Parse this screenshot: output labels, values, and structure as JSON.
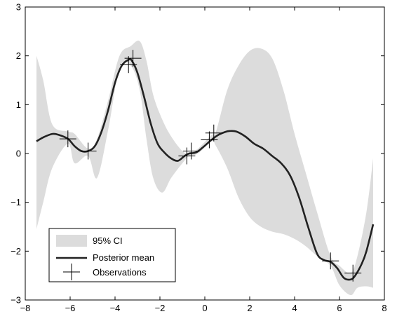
{
  "chart_data": {
    "type": "line",
    "title": "",
    "xlabel": "",
    "ylabel": "",
    "xlim": [
      -8,
      8
    ],
    "ylim": [
      -3,
      3
    ],
    "xticks": [
      -8,
      -6,
      -4,
      -2,
      0,
      2,
      4,
      6,
      8
    ],
    "yticks": [
      -3,
      -2,
      -1,
      0,
      1,
      2,
      3
    ],
    "xtick_labels": [
      "−8",
      "−6",
      "−4",
      "−2",
      "0",
      "2",
      "4",
      "6",
      "8"
    ],
    "ytick_labels": [
      "−3",
      "−2",
      "−1",
      "0",
      "1",
      "2",
      "3"
    ],
    "grid": false,
    "legend_position": "bottom-left",
    "colors": {
      "band": "#dcdcdc",
      "mean": "#222222",
      "marker": "#000000"
    },
    "series": [
      {
        "name": "95% CI",
        "kind": "band",
        "x": [
          -7.5,
          -7.2,
          -6.8,
          -6.1,
          -5.8,
          -5.2,
          -4.8,
          -4.3,
          -3.8,
          -3.3,
          -2.9,
          -2.6,
          -2.3,
          -1.9,
          -1.5,
          -1.0,
          -0.7,
          -0.3,
          0.3,
          0.5,
          1.0,
          1.5,
          2.0,
          2.5,
          3.0,
          3.5,
          4.0,
          4.5,
          5.0,
          5.6,
          6.0,
          6.5,
          6.8,
          7.2,
          7.5
        ],
        "upper": [
          2.0,
          1.5,
          0.6,
          0.45,
          0.4,
          0.1,
          0.3,
          1.1,
          2.0,
          2.2,
          2.3,
          1.9,
          1.2,
          0.7,
          0.35,
          0.05,
          0.0,
          0.1,
          0.38,
          0.45,
          1.3,
          1.8,
          2.1,
          2.15,
          1.95,
          1.3,
          0.4,
          -0.4,
          -1.2,
          -2.1,
          -2.3,
          -2.45,
          -2.1,
          -1.2,
          -0.1
        ],
        "lower": [
          -1.55,
          -1.0,
          -0.3,
          0.2,
          -0.2,
          -0.05,
          -0.5,
          0.5,
          1.75,
          1.8,
          1.3,
          0.3,
          -0.5,
          -0.8,
          -0.5,
          -0.2,
          -0.05,
          0.0,
          0.25,
          0.15,
          -0.3,
          -0.9,
          -1.3,
          -1.5,
          -1.6,
          -1.65,
          -1.75,
          -1.9,
          -2.1,
          -2.3,
          -2.7,
          -2.9,
          -2.75,
          -2.72,
          -2.75
        ]
      },
      {
        "name": "Posterior mean",
        "kind": "line",
        "x": [
          -7.5,
          -7.2,
          -6.8,
          -6.5,
          -6.1,
          -5.8,
          -5.5,
          -5.2,
          -4.9,
          -4.6,
          -4.3,
          -4.0,
          -3.7,
          -3.4,
          -3.25,
          -3.0,
          -2.7,
          -2.4,
          -2.1,
          -1.8,
          -1.5,
          -1.2,
          -0.9,
          -0.7,
          -0.4,
          -0.1,
          0.3,
          0.6,
          0.9,
          1.1,
          1.4,
          1.8,
          2.2,
          2.6,
          3.0,
          3.4,
          3.8,
          4.2,
          4.6,
          5.0,
          5.3,
          5.6,
          5.9,
          6.2,
          6.5,
          6.7,
          7.0,
          7.2,
          7.5
        ],
        "y": [
          0.25,
          0.33,
          0.4,
          0.38,
          0.3,
          0.15,
          0.05,
          0.05,
          0.15,
          0.45,
          0.9,
          1.45,
          1.8,
          1.92,
          1.9,
          1.65,
          1.15,
          0.6,
          0.2,
          0.02,
          -0.1,
          -0.15,
          -0.05,
          0.0,
          0.02,
          0.12,
          0.28,
          0.38,
          0.44,
          0.46,
          0.45,
          0.35,
          0.2,
          0.1,
          -0.05,
          -0.2,
          -0.45,
          -0.9,
          -1.5,
          -2.05,
          -2.18,
          -2.22,
          -2.35,
          -2.55,
          -2.58,
          -2.5,
          -2.25,
          -2.0,
          -1.45
        ]
      },
      {
        "name": "Observations",
        "kind": "scatter",
        "x": [
          -6.1,
          -5.2,
          -3.4,
          -3.2,
          -0.8,
          -0.6,
          0.2,
          0.4,
          5.6,
          6.6
        ],
        "y": [
          0.3,
          0.05,
          1.82,
          1.95,
          -0.05,
          0.05,
          0.28,
          0.42,
          -2.2,
          -2.45
        ]
      }
    ]
  }
}
